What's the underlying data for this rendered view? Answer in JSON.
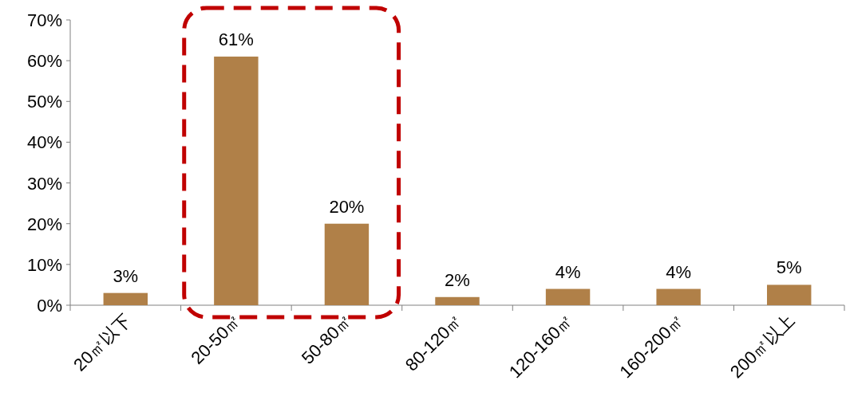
{
  "chart_data": {
    "type": "bar",
    "categories": [
      "20㎡以下",
      "20-50㎡",
      "50-80㎡",
      "80-120㎡",
      "120-160㎡",
      "160-200㎡",
      "200㎡以上"
    ],
    "values": [
      3,
      61,
      20,
      2,
      4,
      4,
      5
    ],
    "value_labels": [
      "3%",
      "61%",
      "20%",
      "2%",
      "4%",
      "4%",
      "5%"
    ],
    "color": "#b08048",
    "ylim": [
      0,
      70
    ],
    "yticks": [
      {
        "value": 0,
        "label": "0%"
      },
      {
        "value": 10,
        "label": "10%"
      },
      {
        "value": 20,
        "label": "20%"
      },
      {
        "value": 30,
        "label": "30%"
      },
      {
        "value": 40,
        "label": "40%"
      },
      {
        "value": 50,
        "label": "50%"
      },
      {
        "value": 60,
        "label": "60%"
      },
      {
        "value": 70,
        "label": "70%"
      }
    ],
    "grid": false
  }
}
